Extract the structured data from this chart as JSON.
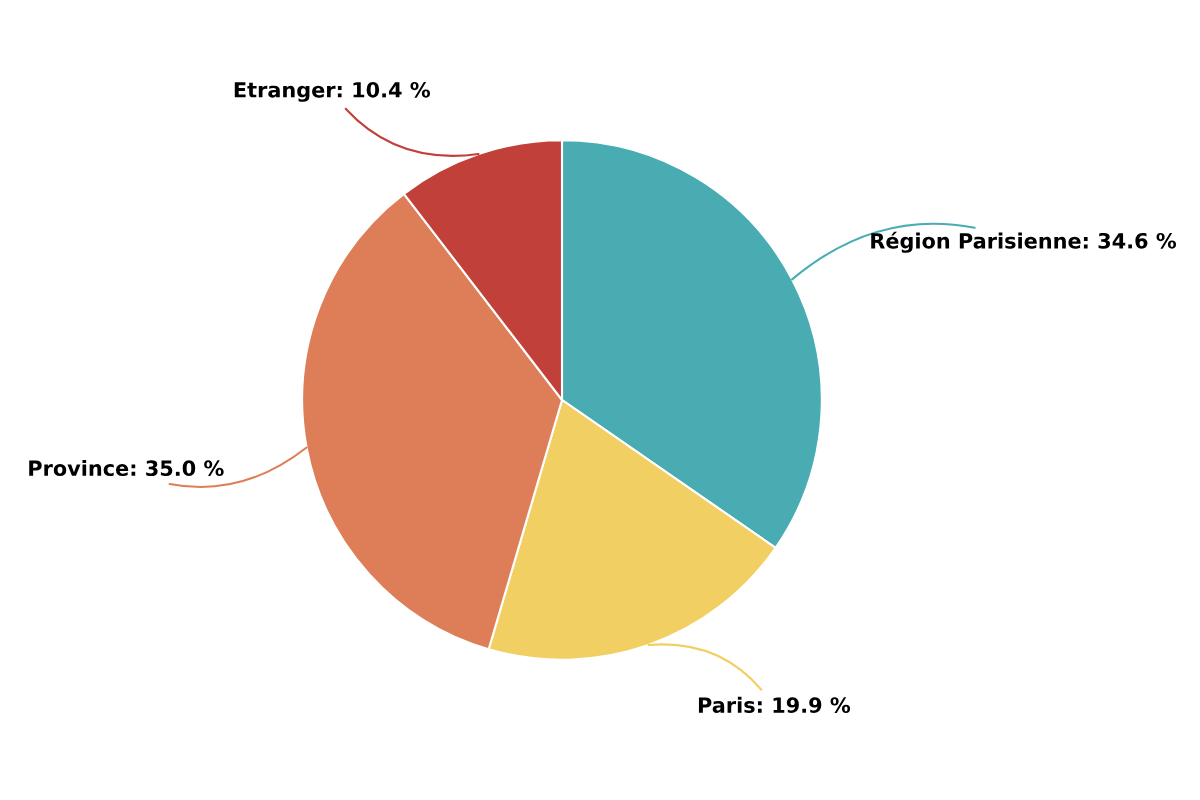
{
  "chart_data": {
    "type": "pie",
    "categories": [
      "Région Parisienne",
      "Paris",
      "Province",
      "Etranger"
    ],
    "values": [
      34.6,
      19.9,
      35.0,
      10.4
    ],
    "colors": [
      "#48acb2",
      "#f2cf63",
      "#dd7e59",
      "#c1403a"
    ],
    "value_labels": [
      "34.6 %",
      "19.9 %",
      "35.0 %",
      "10.4 %"
    ]
  }
}
